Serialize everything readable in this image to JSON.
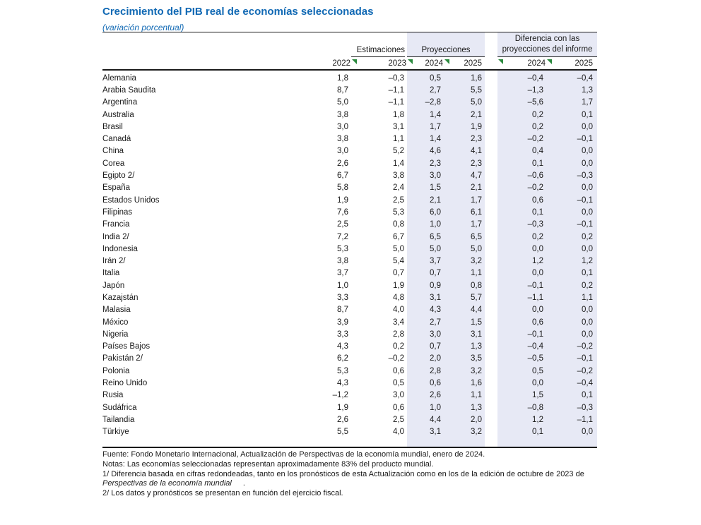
{
  "title": "Crecimiento del PIB real de economías seleccionadas",
  "subtitle": "(variación  porcentual)",
  "header": {
    "estimaciones": "Estimaciones",
    "proyecciones": "Proyecciones",
    "diferencia": "Diferencia con las proyecciones del informe"
  },
  "table": {
    "years": [
      "2022",
      "2023",
      "2024",
      "2025",
      "2024",
      "2025"
    ],
    "rows": [
      {
        "country": "Alemania",
        "values": [
          "1,8",
          "–0,3",
          "0,5",
          "1,6",
          "–0,4",
          "–0,4"
        ]
      },
      {
        "country": "Arabia Saudita",
        "values": [
          "8,7",
          "–1,1",
          "2,7",
          "5,5",
          "–1,3",
          "1,3"
        ]
      },
      {
        "country": "Argentina",
        "values": [
          "5,0",
          "–1,1",
          "–2,8",
          "5,0",
          "–5,6",
          "1,7"
        ]
      },
      {
        "country": "Australia",
        "values": [
          "3,8",
          "1,8",
          "1,4",
          "2,1",
          "0,2",
          "0,1"
        ]
      },
      {
        "country": "Brasil",
        "values": [
          "3,0",
          "3,1",
          "1,7",
          "1,9",
          "0,2",
          "0,0"
        ]
      },
      {
        "country": "Canadá",
        "values": [
          "3,8",
          "1,1",
          "1,4",
          "2,3",
          "–0,2",
          "–0,1"
        ]
      },
      {
        "country": "China",
        "values": [
          "3,0",
          "5,2",
          "4,6",
          "4,1",
          "0,4",
          "0,0"
        ]
      },
      {
        "country": "Corea",
        "values": [
          "2,6",
          "1,4",
          "2,3",
          "2,3",
          "0,1",
          "0,0"
        ]
      },
      {
        "country": "Egipto 2/",
        "values": [
          "6,7",
          "3,8",
          "3,0",
          "4,7",
          "–0,6",
          "–0,3"
        ]
      },
      {
        "country": "España",
        "values": [
          "5,8",
          "2,4",
          "1,5",
          "2,1",
          "–0,2",
          "0,0"
        ]
      },
      {
        "country": "Estados Unidos",
        "values": [
          "1,9",
          "2,5",
          "2,1",
          "1,7",
          "0,6",
          "–0,1"
        ]
      },
      {
        "country": "Filipinas",
        "values": [
          "7,6",
          "5,3",
          "6,0",
          "6,1",
          "0,1",
          "0,0"
        ]
      },
      {
        "country": "Francia",
        "values": [
          "2,5",
          "0,8",
          "1,0",
          "1,7",
          "–0,3",
          "–0,1"
        ]
      },
      {
        "country": "India 2/",
        "values": [
          "7,2",
          "6,7",
          "6,5",
          "6,5",
          "0,2",
          "0,2"
        ]
      },
      {
        "country": "Indonesia",
        "values": [
          "5,3",
          "5,0",
          "5,0",
          "5,0",
          "0,0",
          "0,0"
        ]
      },
      {
        "country": "Irán 2/",
        "values": [
          "3,8",
          "5,4",
          "3,7",
          "3,2",
          "1,2",
          "1,2"
        ]
      },
      {
        "country": "Italia",
        "values": [
          "3,7",
          "0,7",
          "0,7",
          "1,1",
          "0,0",
          "0,1"
        ]
      },
      {
        "country": "Japón",
        "values": [
          "1,0",
          "1,9",
          "0,9",
          "0,8",
          "–0,1",
          "0,2"
        ]
      },
      {
        "country": "Kazajstán",
        "values": [
          "3,3",
          "4,8",
          "3,1",
          "5,7",
          "–1,1",
          "1,1"
        ]
      },
      {
        "country": "Malasia",
        "values": [
          "8,7",
          "4,0",
          "4,3",
          "4,4",
          "0,0",
          "0,0"
        ]
      },
      {
        "country": "México",
        "values": [
          "3,9",
          "3,4",
          "2,7",
          "1,5",
          "0,6",
          "0,0"
        ]
      },
      {
        "country": "Nigeria",
        "values": [
          "3,3",
          "2,8",
          "3,0",
          "3,1",
          "–0,1",
          "0,0"
        ]
      },
      {
        "country": "Países Bajos",
        "values": [
          "4,3",
          "0,2",
          "0,7",
          "1,3",
          "–0,4",
          "–0,2"
        ]
      },
      {
        "country": "Pakistán 2/",
        "values": [
          "6,2",
          "–0,2",
          "2,0",
          "3,5",
          "–0,5",
          "–0,1"
        ]
      },
      {
        "country": "Polonia",
        "values": [
          "5,3",
          "0,6",
          "2,8",
          "3,2",
          "0,5",
          "–0,2"
        ]
      },
      {
        "country": "Reino Unido",
        "values": [
          "4,3",
          "0,5",
          "0,6",
          "1,6",
          "0,0",
          "–0,4"
        ]
      },
      {
        "country": "Rusia",
        "values": [
          "–1,2",
          "3,0",
          "2,6",
          "1,1",
          "1,5",
          "0,1"
        ]
      },
      {
        "country": "Sudáfrica",
        "values": [
          "1,9",
          "0,6",
          "1,0",
          "1,3",
          "–0,8",
          "–0,3"
        ]
      },
      {
        "country": "Tailandia",
        "values": [
          "2,6",
          "2,5",
          "4,4",
          "2,0",
          "1,2",
          "–1,1"
        ]
      },
      {
        "country": "Türkiye",
        "values": [
          "5,5",
          "4,0",
          "3,1",
          "3,2",
          "0,1",
          "0,0"
        ]
      }
    ]
  },
  "notes": {
    "fuente": "Fuente:  Fondo Monetario Internacional, Actualización de Perspectivas de la economía mundial, enero de 2024.",
    "notas": "Notas: Las economías seleccionadas representan aproximadamente 83% del producto mundial.",
    "note1_line1": "1/ Diferencia basada en cifras redondeadas, tanto en los pronósticos de esta Actualización como en los de la edición de octubre de 2023 de",
    "note1_line2_italic": "Perspectivas de la economía mundial",
    "note1_line2_suffix": ".",
    "note2": "2/ Los datos y pronósticos se presentan en función del ejercicio fiscal."
  },
  "colors": {
    "accent_blue": "#1169B4",
    "band_blue": "#E7E9F5",
    "marker_green": "#2B8A3E",
    "rule_black": "#1a1a1a"
  }
}
